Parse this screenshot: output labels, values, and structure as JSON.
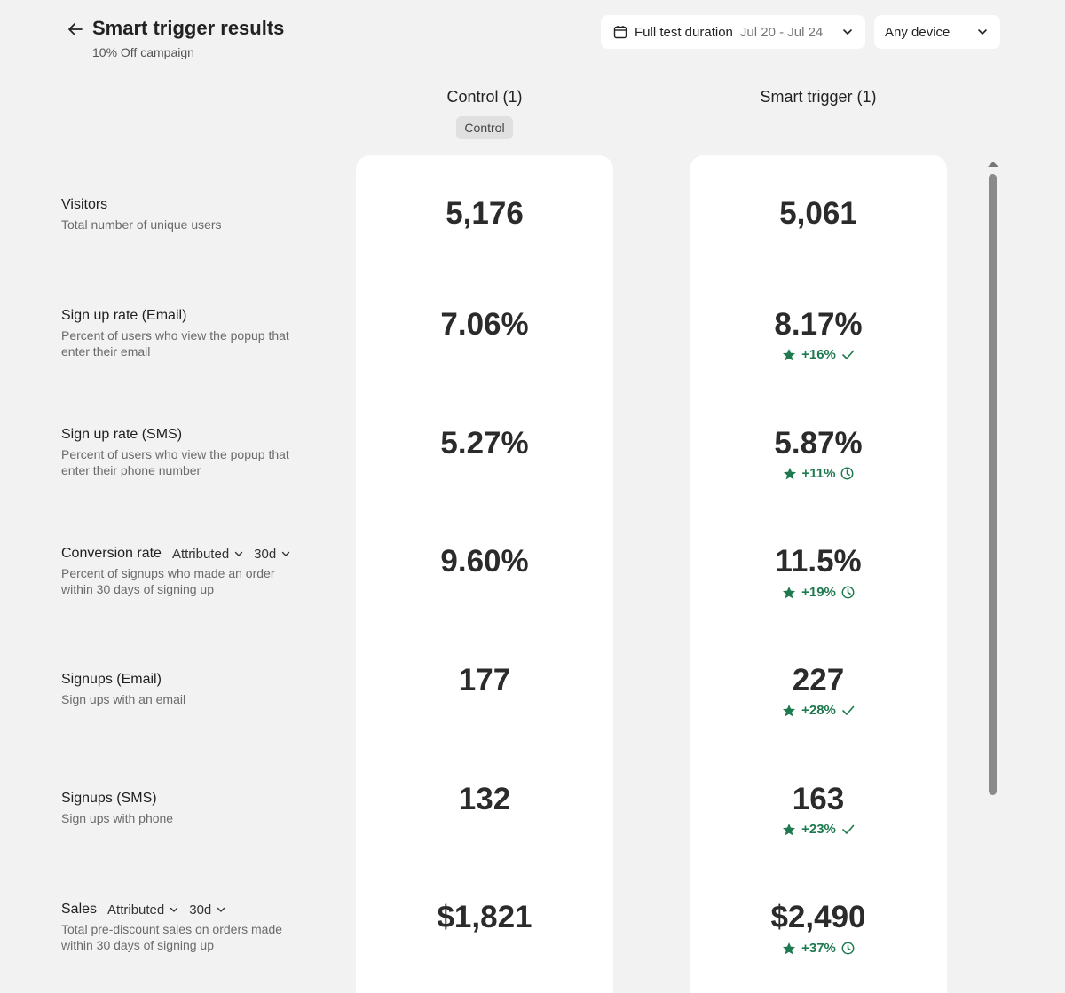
{
  "header": {
    "title": "Smart trigger results",
    "subtitle": "10% Off campaign",
    "date_filter": {
      "label": "Full test duration",
      "range": "Jul 20 - Jul 24"
    },
    "device_filter": {
      "label": "Any device"
    }
  },
  "columns": {
    "control": {
      "title": "Control (1)",
      "tag": "Control"
    },
    "smart": {
      "title": "Smart trigger (1)"
    }
  },
  "metrics": [
    {
      "title": "Visitors",
      "desc1": "Total number of unique users",
      "desc2": "",
      "control": "5,176",
      "smart": "5,061"
    },
    {
      "title": "Sign up rate (Email)",
      "desc1": "Percent of users who view the popup that",
      "desc2": "enter their email",
      "control": "7.06%",
      "smart": "8.17%",
      "delta": "+16%",
      "status": "check"
    },
    {
      "title": "Sign up rate (SMS)",
      "desc1": "Percent of users who view the popup that",
      "desc2": "enter their phone number",
      "control": "5.27%",
      "smart": "5.87%",
      "delta": "+11%",
      "status": "clock"
    },
    {
      "title": "Conversion rate",
      "attr": "Attributed",
      "window": "30d",
      "desc1": "Percent of signups who made an order",
      "desc2": "within 30 days of signing up",
      "control": "9.60%",
      "smart": "11.5%",
      "delta": "+19%",
      "status": "clock"
    },
    {
      "title": "Signups (Email)",
      "desc1": "Sign ups with an email",
      "desc2": "",
      "control": "177",
      "smart": "227",
      "delta": "+28%",
      "status": "check"
    },
    {
      "title": "Signups (SMS)",
      "desc1": "Sign ups with phone",
      "desc2": "",
      "control": "132",
      "smart": "163",
      "delta": "+23%",
      "status": "check"
    },
    {
      "title": "Sales",
      "attr": "Attributed",
      "window": "30d",
      "desc1": "Total pre-discount sales on orders made",
      "desc2": "within 30 days of signing up",
      "control": "$1,821",
      "smart": "$2,490",
      "delta": "+37%",
      "status": "clock"
    }
  ],
  "colors": {
    "positive": "#1e7a4e",
    "background": "#f2f2f2",
    "card": "#ffffff"
  }
}
